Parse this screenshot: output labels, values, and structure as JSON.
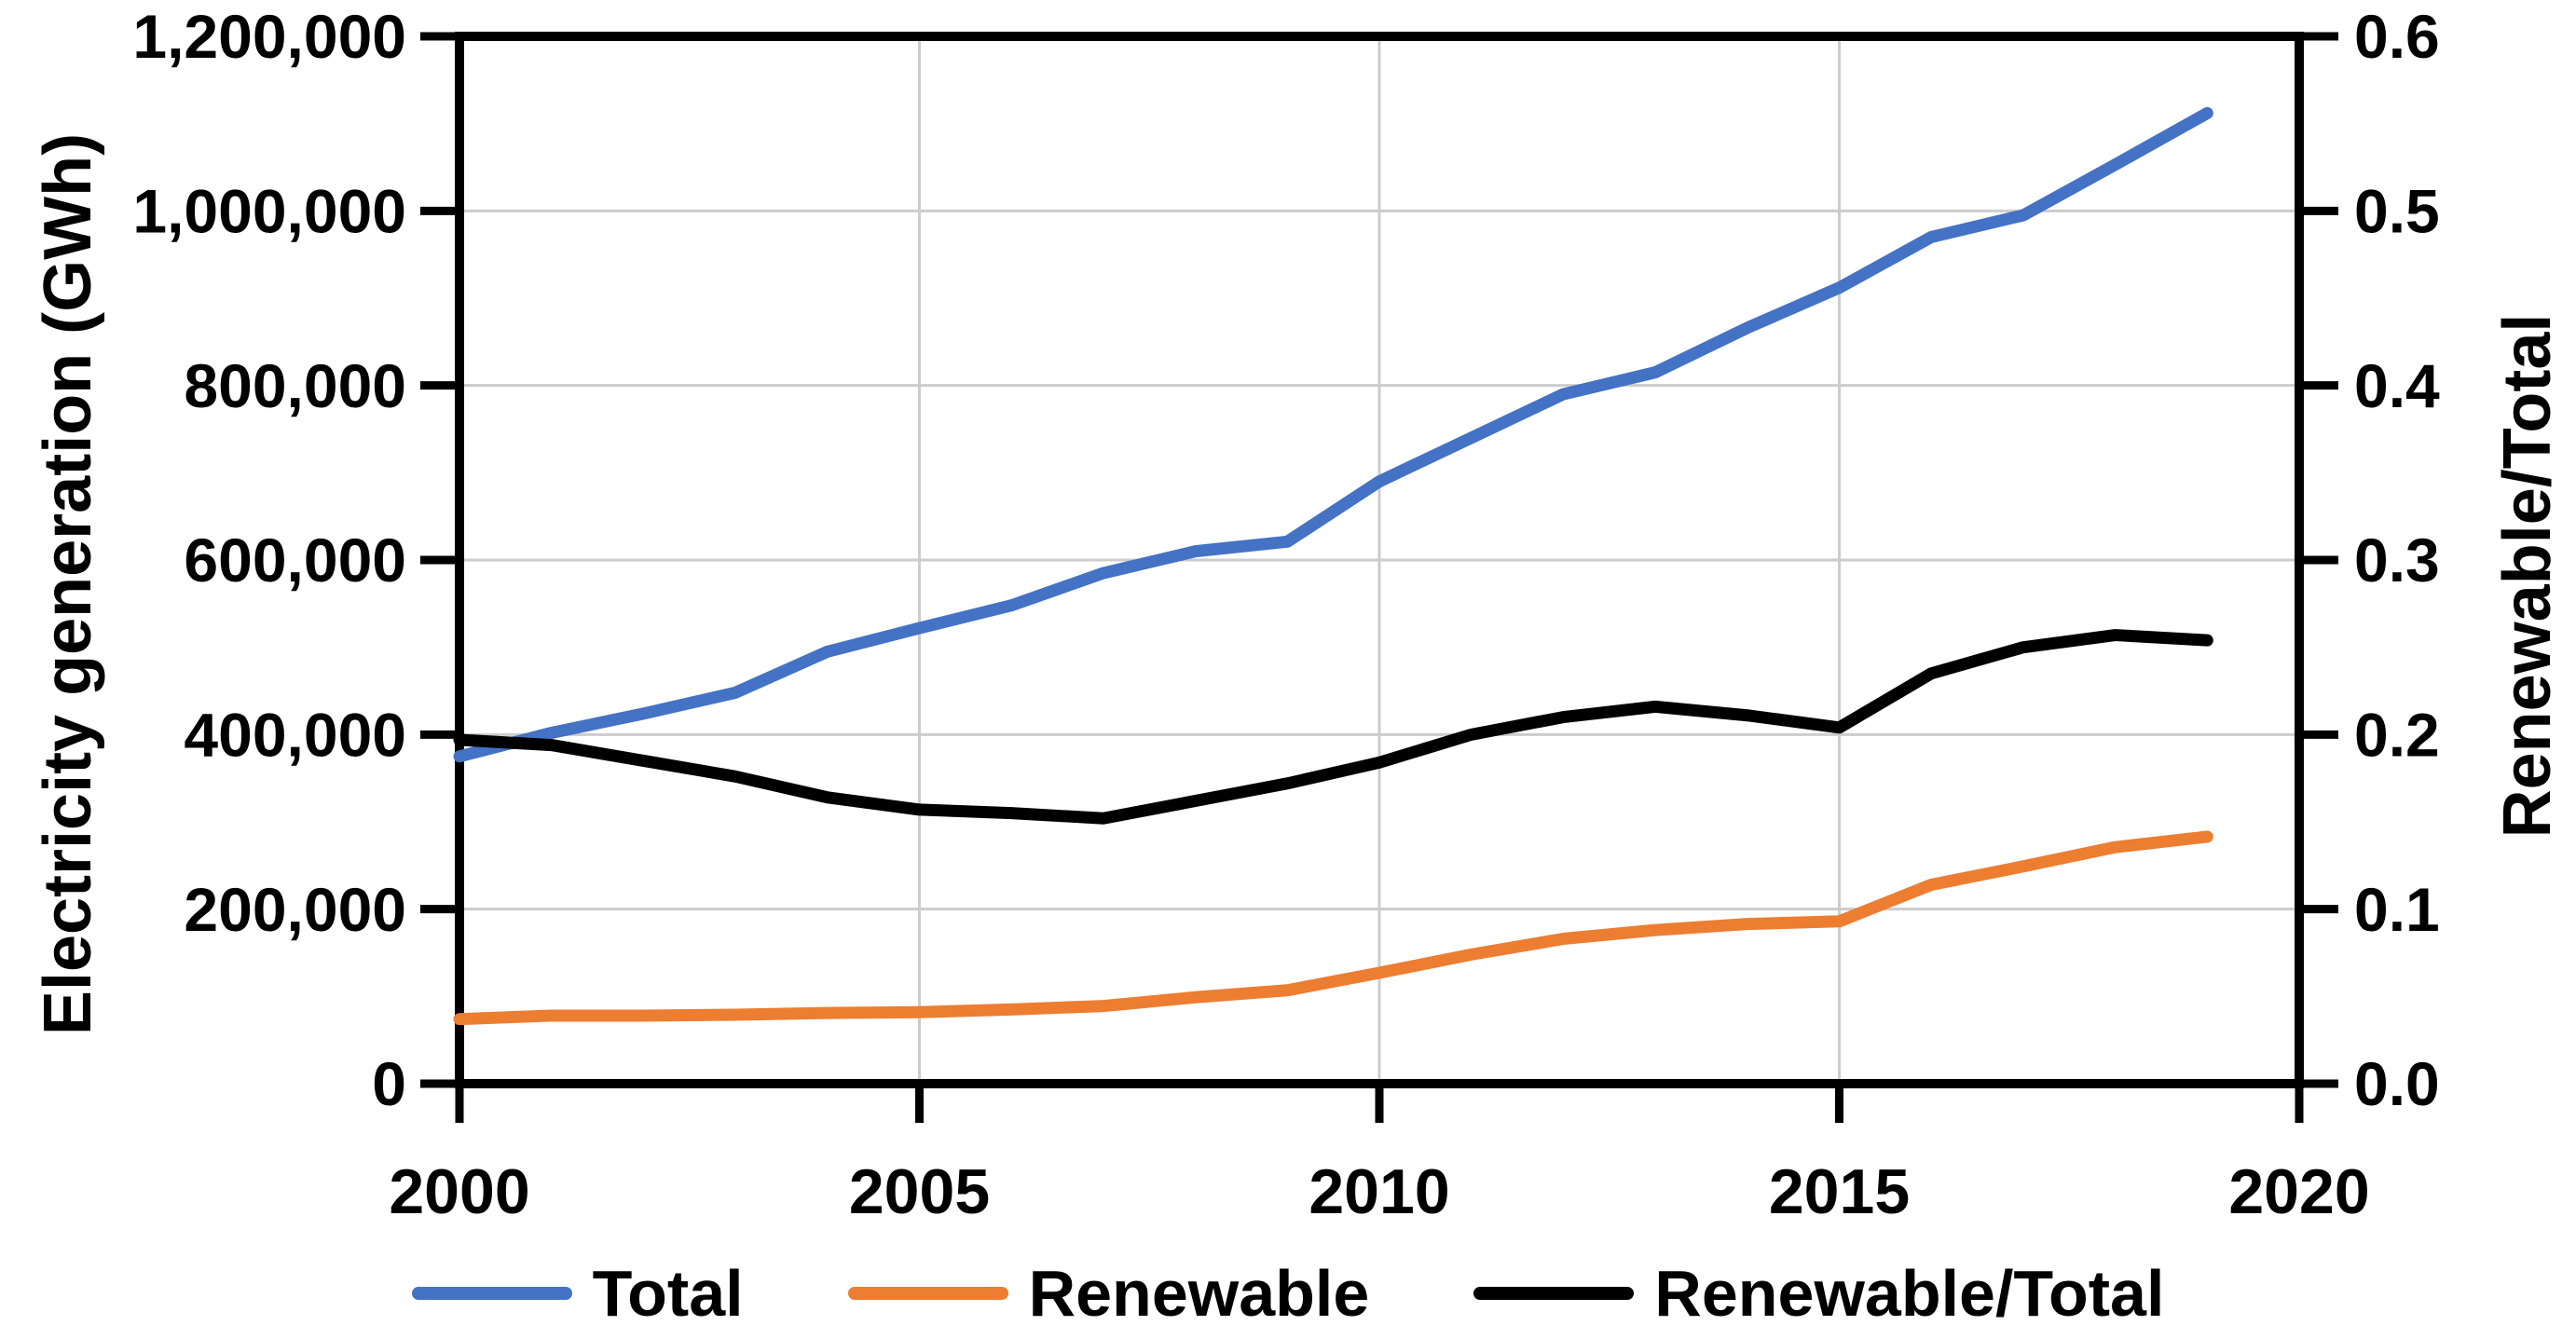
{
  "chart_data": {
    "type": "line",
    "title": "",
    "x": [
      2000,
      2001,
      2002,
      2003,
      2004,
      2005,
      2006,
      2007,
      2008,
      2009,
      2010,
      2011,
      2012,
      2013,
      2014,
      2015,
      2016,
      2017,
      2018,
      2019
    ],
    "series": [
      {
        "name": "Total",
        "axis": "left",
        "color": "#4472C4",
        "values": [
          375000,
          402000,
          424000,
          448000,
          495000,
          522000,
          548000,
          585000,
          610000,
          621000,
          690000,
          740000,
          790000,
          815000,
          866000,
          912000,
          970000,
          995000,
          1053000,
          1112000
        ]
      },
      {
        "name": "Renewable",
        "axis": "left",
        "color": "#ED7D31",
        "values": [
          74000,
          78000,
          78000,
          79000,
          81000,
          82000,
          85000,
          89000,
          99000,
          107000,
          127000,
          148000,
          166000,
          176000,
          183000,
          186000,
          228000,
          249000,
          271000,
          283000
        ]
      },
      {
        "name": "Renewable/Total",
        "axis": "right",
        "color": "#000000",
        "values": [
          0.197,
          0.194,
          0.185,
          0.176,
          0.164,
          0.157,
          0.155,
          0.152,
          0.162,
          0.172,
          0.184,
          0.2,
          0.21,
          0.216,
          0.211,
          0.204,
          0.235,
          0.25,
          0.257,
          0.254
        ]
      }
    ],
    "left_axis": {
      "label": "Electricity generation (GWh)",
      "min": 0,
      "max": 1200000,
      "step": 200000,
      "tick_labels": [
        "0",
        "200,000",
        "400,000",
        "600,000",
        "800,000",
        "1,000,000",
        "1,200,000"
      ]
    },
    "right_axis": {
      "label": "Renewable/Total",
      "min": 0.0,
      "max": 0.6,
      "step": 0.1,
      "tick_labels": [
        "0.0",
        "0.1",
        "0.2",
        "0.3",
        "0.4",
        "0.5",
        "0.6"
      ]
    },
    "x_axis": {
      "min": 2000,
      "max": 2020,
      "step": 5,
      "tick_labels": [
        "2000",
        "2005",
        "2010",
        "2015",
        "2020"
      ],
      "gridline_years": [
        2005,
        2010,
        2015
      ]
    },
    "grid": {
      "horizontal": true,
      "vertical": true,
      "color": "#CCCCCC"
    },
    "frame_color": "#000000",
    "legend_position": "bottom",
    "legend": [
      "Total",
      "Renewable",
      "Renewable/Total"
    ]
  }
}
